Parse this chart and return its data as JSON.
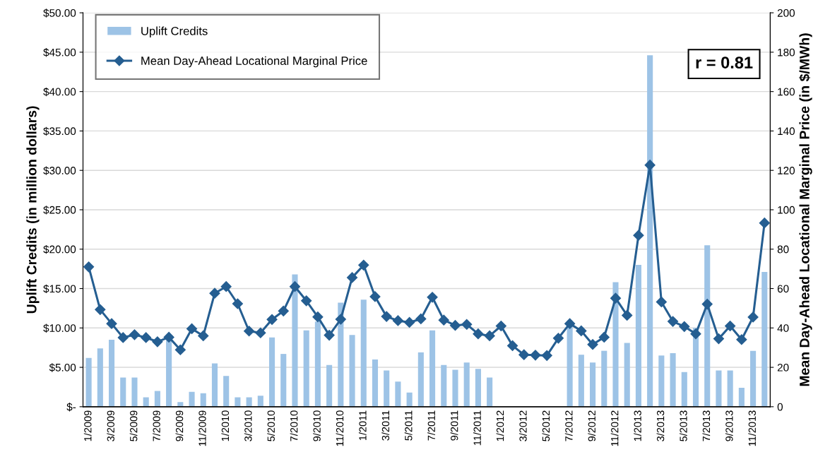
{
  "chart_data": {
    "type": "bar",
    "ylabel": "Uplift Credits (in million dollars)",
    "y2label": "Mean Day-Ahead Locational Marginal Price (in $/MWh)",
    "categories": [
      "1/2009",
      null,
      "3/2009",
      null,
      "5/2009",
      null,
      "7/2009",
      null,
      "9/2009",
      null,
      "11/2009",
      null,
      "1/2010",
      null,
      "3/2010",
      null,
      "5/2010",
      null,
      "7/2010",
      null,
      "9/2010",
      null,
      "11/2010",
      null,
      "1/2011",
      null,
      "3/2011",
      null,
      "5/2011",
      null,
      "7/2011",
      null,
      "9/2011",
      null,
      "11/2011",
      null,
      "1/2012",
      null,
      "3/2012",
      null,
      "5/2012",
      null,
      "7/2012",
      null,
      "9/2012",
      null,
      "11/2012",
      null,
      "1/2013",
      null,
      "3/2013",
      null,
      "5/2013",
      null,
      "7/2013",
      null,
      "9/2013",
      null,
      "11/2013",
      null
    ],
    "series": [
      {
        "name": "Uplift Credits",
        "color": "#9dc3e6",
        "values": [
          6.2,
          7.4,
          8.5,
          3.7,
          3.7,
          1.2,
          2.0,
          8.4,
          0.6,
          1.9,
          1.7,
          5.5,
          3.9,
          1.2,
          1.2,
          1.4,
          8.8,
          6.7,
          16.8,
          9.7,
          10.8,
          5.3,
          13.2,
          9.1,
          13.6,
          6.0,
          4.6,
          3.2,
          1.8,
          6.9,
          9.7,
          5.3,
          4.7,
          5.6,
          4.8,
          3.7,
          0,
          0,
          0,
          0,
          0,
          0,
          10.2,
          6.6,
          5.6,
          7.1,
          15.8,
          8.1,
          18.0,
          44.6,
          6.5,
          6.8,
          4.4,
          10.0,
          20.5,
          4.6,
          4.6,
          2.4,
          7.1,
          17.1
        ]
      },
      {
        "name": "Mean Day-Ahead Locational Marginal Price",
        "type": "line",
        "axis": "y2",
        "color": "#255e91",
        "values": [
          71,
          49.3,
          42.2,
          35.1,
          36.6,
          35.1,
          33,
          35.3,
          28.9,
          39.6,
          36,
          57.6,
          61,
          52.3,
          38.4,
          37.5,
          44.3,
          48.6,
          61,
          53.8,
          45.6,
          36.3,
          44.4,
          65.6,
          71.9,
          55.9,
          45.8,
          43.7,
          42.8,
          44.6,
          55.6,
          44,
          41.3,
          41.8,
          37,
          36,
          41,
          31,
          26.4,
          26.2,
          26,
          34.8,
          42.2,
          38.5,
          31.6,
          35.3,
          55.1,
          46.4,
          87,
          122.7,
          53.2,
          43.3,
          40.7,
          37,
          52.1,
          34.5,
          41,
          34.1,
          45.5,
          93.3
        ]
      }
    ],
    "ylim": [
      0,
      50
    ],
    "yticks": [
      {
        "value": 0,
        "label": "$-"
      },
      {
        "value": 5,
        "label": "$5.00"
      },
      {
        "value": 10,
        "label": "$10.00"
      },
      {
        "value": 15,
        "label": "$15.00"
      },
      {
        "value": 20,
        "label": "$20.00"
      },
      {
        "value": 25,
        "label": "$25.00"
      },
      {
        "value": 30,
        "label": "$30.00"
      },
      {
        "value": 35,
        "label": "$35.00"
      },
      {
        "value": 40,
        "label": "$40.00"
      },
      {
        "value": 45,
        "label": "$45.00"
      },
      {
        "value": 50,
        "label": "$50.00"
      }
    ],
    "y2lim": [
      0,
      200
    ],
    "y2ticks": [
      0,
      20,
      40,
      60,
      80,
      100,
      120,
      140,
      160,
      180,
      200
    ],
    "grid": "y",
    "legend": "top left",
    "marker": "diamond",
    "line_style": "solid",
    "annotations": [
      "r = 0.81"
    ]
  }
}
